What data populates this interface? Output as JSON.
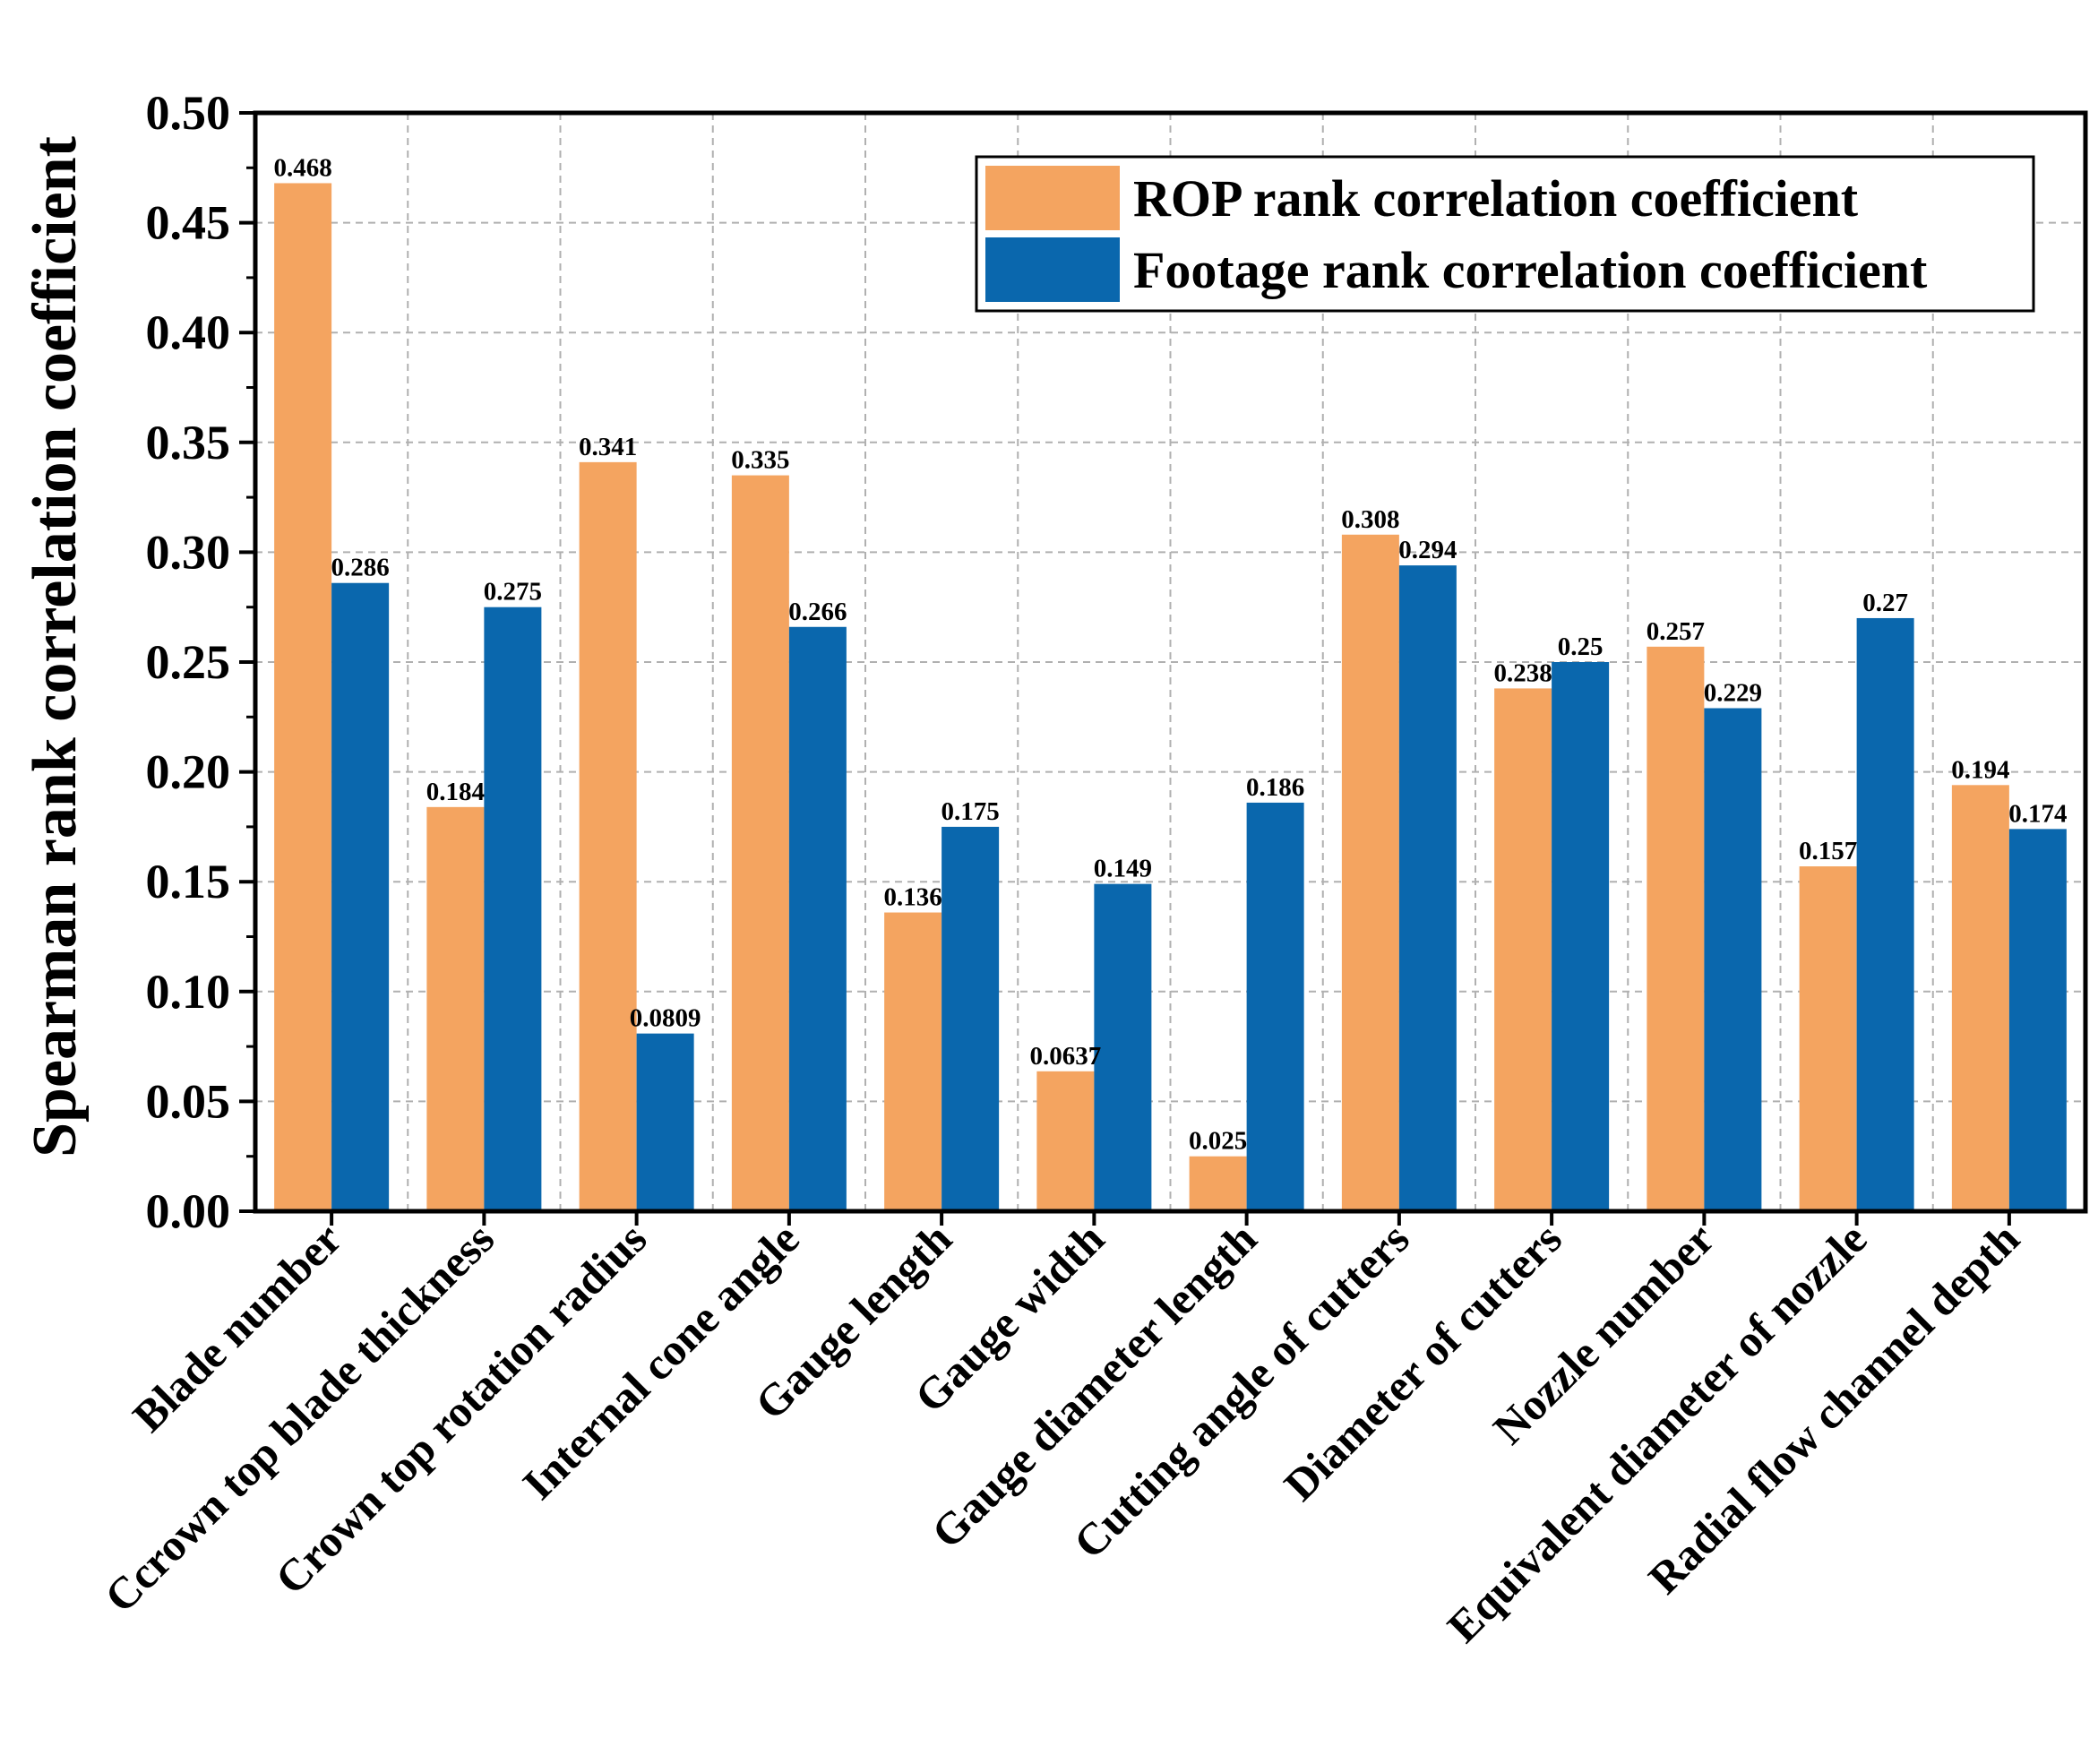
{
  "chart_data": {
    "type": "bar",
    "title": "",
    "xlabel": "",
    "ylabel": "Spearman rank correlation coefficient",
    "ylim": [
      0,
      0.5
    ],
    "yticks": [
      "0.00",
      "0.05",
      "0.10",
      "0.15",
      "0.20",
      "0.25",
      "0.30",
      "0.35",
      "0.40",
      "0.45",
      "0.50"
    ],
    "grid": true,
    "legend_position": "top-right",
    "categories": [
      "Blade number",
      "Ccrown top blade thickness",
      "Crown top rotation radius",
      "Internal cone angle",
      "Gauge length",
      "Gauge width",
      "Gauge diameter length",
      "Cutting angle of cutters",
      "Diameter of cutters",
      "Nozzle number",
      "Equivalent diameter of nozzle",
      "Radial flow channel depth"
    ],
    "series": [
      {
        "name": "ROP rank correlation coefficient",
        "color": "#F4A460",
        "values": [
          0.468,
          0.184,
          0.341,
          0.335,
          0.136,
          0.0637,
          0.025,
          0.308,
          0.238,
          0.257,
          0.157,
          0.194
        ],
        "labels": [
          "0.468",
          "0.184",
          "0.341",
          "0.335",
          "0.136",
          "0.0637",
          "0.025",
          "0.308",
          "0.238",
          "0.257",
          "0.157",
          "0.194"
        ]
      },
      {
        "name": "Footage rank correlation coefficient",
        "color": "#0A67AD",
        "values": [
          0.286,
          0.275,
          0.0809,
          0.266,
          0.175,
          0.149,
          0.186,
          0.294,
          0.25,
          0.229,
          0.27,
          0.174
        ],
        "labels": [
          "0.286",
          "0.275",
          "0.0809",
          "0.266",
          "0.175",
          "0.149",
          "0.186",
          "0.294",
          "0.25",
          "0.229",
          "0.27",
          "0.174"
        ]
      }
    ]
  }
}
